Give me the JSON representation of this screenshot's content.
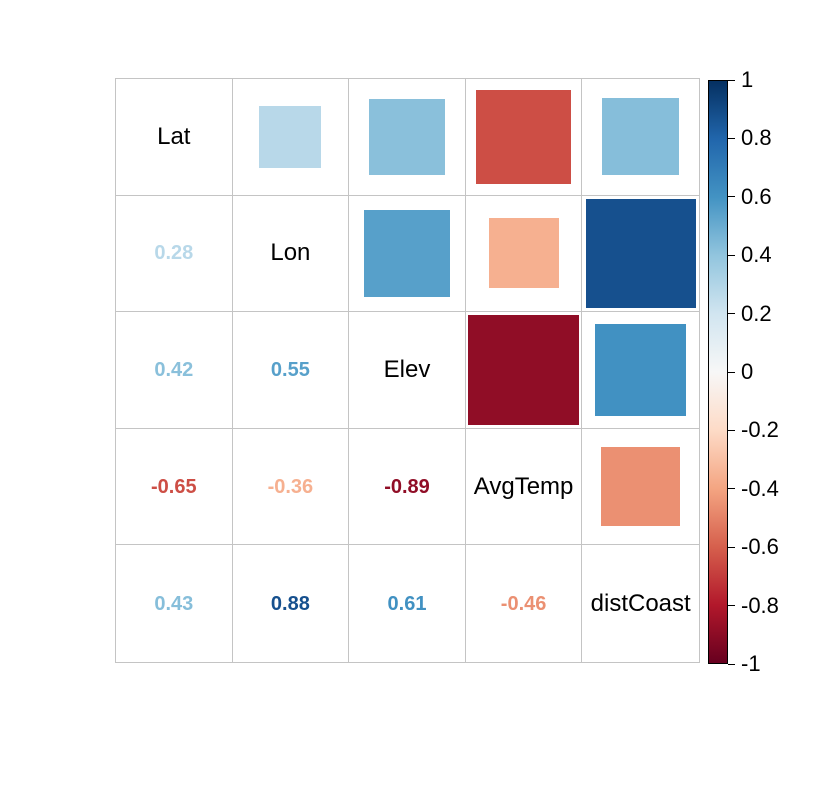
{
  "chart_data": {
    "type": "heatmap",
    "subtype": "correlation-matrix-mixed",
    "title": "",
    "variables": [
      "Lat",
      "Lon",
      "Elev",
      "AvgTemp",
      "distCoast"
    ],
    "matrix": [
      [
        1.0,
        0.28,
        0.42,
        -0.65,
        0.43
      ],
      [
        0.28,
        1.0,
        0.55,
        -0.36,
        0.88
      ],
      [
        0.42,
        0.55,
        1.0,
        -0.89,
        0.61
      ],
      [
        -0.65,
        -0.36,
        -0.89,
        1.0,
        -0.46
      ],
      [
        0.43,
        0.88,
        0.61,
        -0.46,
        1.0
      ]
    ],
    "upper_triangle_glyph": "square-sized-by-abs-correlation",
    "lower_triangle_glyph": "numeric-value",
    "diagonal_glyph": "variable-label",
    "colorbar": {
      "position": "right",
      "range": [
        -1,
        1
      ],
      "tick_labels": [
        "1",
        "0.8",
        "0.6",
        "0.4",
        "0.2",
        "0",
        "-0.2",
        "-0.4",
        "-0.6",
        "-0.8",
        "-1"
      ]
    },
    "palette_anchors_low_to_high": [
      "#67001F",
      "#B2182B",
      "#D6604D",
      "#F4A582",
      "#FDDBC7",
      "#F7F7F7",
      "#D1E5F0",
      "#92C5DE",
      "#4393C3",
      "#2166AC",
      "#053061"
    ]
  },
  "colors": {
    "background": "#ffffff",
    "grid_line": "#c4c4c4",
    "colorbar_border": "#000000",
    "diagonal_label_text": "#000000",
    "tick_label_text": "#000000"
  }
}
